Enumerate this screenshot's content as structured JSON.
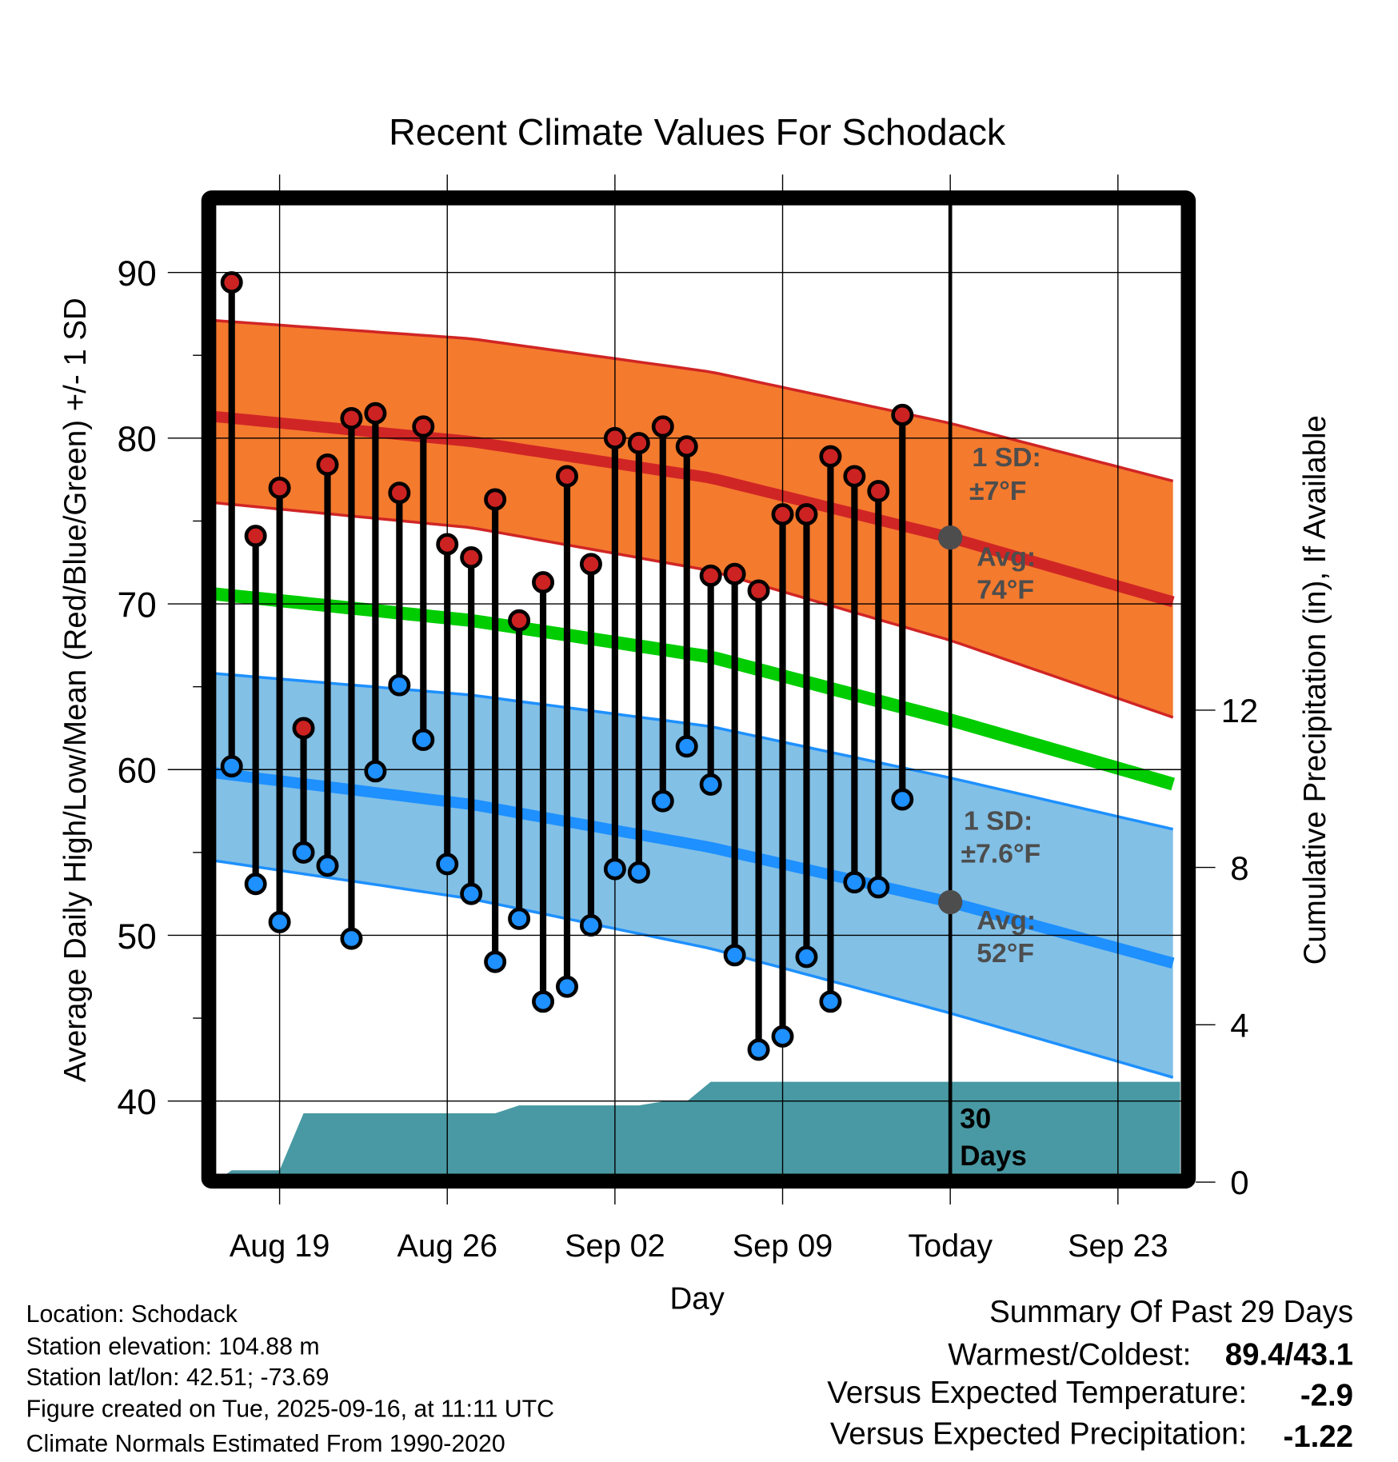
{
  "chart_data": {
    "type": "line",
    "title": "Recent Climate Values For Schodack",
    "xlabel": "Day",
    "ylabel": "Average Daily High/Low/Mean (Red/Blue/Green) +/- 1 SD",
    "ylabel_right": "Cumulative Precipitation (in), If Available",
    "ylim": [
      35.6,
      94.0
    ],
    "ylim_right": [
      0,
      23.0
    ],
    "grid": true,
    "x_ticks": [
      {
        "day": 2,
        "label": "Aug 19"
      },
      {
        "day": 9,
        "label": "Aug 26"
      },
      {
        "day": 16,
        "label": "Sep 02"
      },
      {
        "day": 23,
        "label": "Sep 09"
      },
      {
        "day": 30,
        "label": "Today"
      },
      {
        "day": 37,
        "label": "Sep 23"
      }
    ],
    "x_day_zero": "Aug 17",
    "x_range_days": [
      -0.7,
      39.6
    ],
    "y_ticks": [
      "40",
      "50",
      "60",
      "70",
      "80",
      "90"
    ],
    "y_ticks_right": [
      "0",
      "4",
      "8",
      "12"
    ],
    "observed": {
      "dates": [
        "Aug 17",
        "Aug 18",
        "Aug 19",
        "Aug 20",
        "Aug 21",
        "Aug 22",
        "Aug 23",
        "Aug 24",
        "Aug 25",
        "Aug 26",
        "Aug 27",
        "Aug 28",
        "Aug 29",
        "Aug 30",
        "Aug 31",
        "Sep 01",
        "Sep 02",
        "Sep 03",
        "Sep 04",
        "Sep 05",
        "Sep 06",
        "Sep 07",
        "Sep 08",
        "Sep 09",
        "Sep 10",
        "Sep 11",
        "Sep 12",
        "Sep 13",
        "Sep 14"
      ],
      "high": [
        89.4,
        74.1,
        77.0,
        62.5,
        78.4,
        81.2,
        81.5,
        76.7,
        80.7,
        73.6,
        72.8,
        76.3,
        69.0,
        71.3,
        77.7,
        72.4,
        80.0,
        79.7,
        80.7,
        79.5,
        71.7,
        71.8,
        70.8,
        75.4,
        75.4,
        78.9,
        77.7,
        76.8,
        81.4
      ],
      "low": [
        60.2,
        53.1,
        50.8,
        55.0,
        54.2,
        49.8,
        59.9,
        65.1,
        61.8,
        54.3,
        52.5,
        48.4,
        51.0,
        46.0,
        46.9,
        50.6,
        54.0,
        53.8,
        58.1,
        61.4,
        59.1,
        48.8,
        43.1,
        43.9,
        48.7,
        46.0,
        53.2,
        52.9,
        58.2
      ]
    },
    "normals": {
      "days": [
        -0.7,
        10,
        20,
        30,
        39.6
      ],
      "high_plus_sd": [
        87.1,
        86.0,
        84.0,
        80.9,
        77.3
      ],
      "high_avg": [
        81.3,
        79.8,
        77.6,
        74.0,
        70.0
      ],
      "high_minus_sd": [
        76.1,
        74.6,
        72.0,
        67.8,
        63.0
      ],
      "mean": [
        70.6,
        69.0,
        66.8,
        63.0,
        59.0
      ],
      "low_plus_sd": [
        65.8,
        64.5,
        62.6,
        59.5,
        56.3
      ],
      "low_avg": [
        59.8,
        57.9,
        55.3,
        52.0,
        48.2
      ],
      "low_minus_sd": [
        54.5,
        52.2,
        49.2,
        45.3,
        41.3
      ]
    },
    "precip": {
      "days": [
        -0.7,
        0,
        2,
        3,
        11,
        12,
        17,
        18,
        19,
        20,
        39.6
      ],
      "cumulative_in": [
        0,
        0.3,
        0.3,
        1.75,
        1.75,
        1.95,
        1.95,
        2.05,
        2.05,
        2.55,
        2.55
      ]
    },
    "annotations": {
      "high_sd_line1": "1 SD:",
      "high_sd_line2": "±7°F",
      "high_avg_line1": "Avg:",
      "high_avg_line2": "74°F",
      "high_avg_value": 74,
      "low_sd_line1": "1 SD:",
      "low_sd_line2": "±7.6°F",
      "low_avg_line1": "Avg:",
      "low_avg_line2": "52°F",
      "low_avg_value": 52,
      "window_line1": "30",
      "window_line2": "Days"
    },
    "colors": {
      "high_band": "#f47a2e",
      "high_line": "#d02525",
      "mean_line": "#00cc00",
      "low_band": "#82c0e6",
      "low_line": "#1e90ff",
      "precip": "#4899a3",
      "high_dot": "#cc2222",
      "low_dot": "#1e90ff",
      "today_dot": "#4d4d4d"
    }
  },
  "footer": {
    "location": "Location: Schodack",
    "elevation": "Station elevation: 104.88 m",
    "latlon": "Station lat/lon: 42.51; -73.69",
    "created": "Figure created on Tue, 2025-09-16, at 11:11 UTC",
    "normals": "Climate Normals Estimated From 1990-2020"
  },
  "summary": {
    "title": "Summary Of Past 29 Days",
    "warmest_label": "Warmest/Coldest:",
    "warmest_value": "89.4/43.1",
    "temp_label": "Versus Expected Temperature:",
    "temp_value": "-2.9",
    "temp_color": "#1e90ff",
    "precip_label": "Versus Expected Precipitation:",
    "precip_value": "-1.22",
    "precip_color": "#a0522d"
  }
}
